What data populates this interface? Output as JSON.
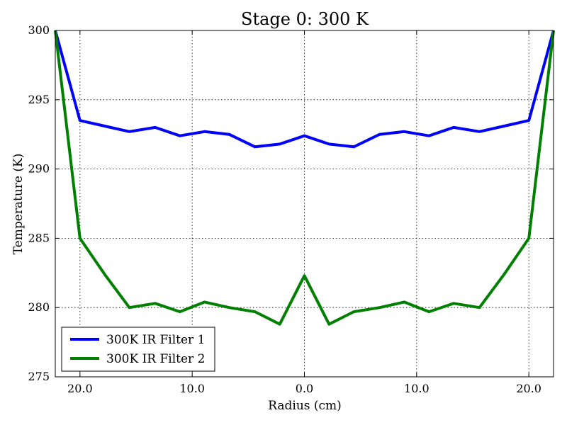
{
  "chart_data": {
    "type": "line",
    "title": "Stage 0: 300 K",
    "xlabel": "Radius (cm)",
    "ylabel": "Temperature (K)",
    "xlim": [
      -22.2,
      22.2
    ],
    "ylim": [
      275,
      300
    ],
    "grid": true,
    "legend": "lower-left",
    "x_ticks": [
      {
        "value": -20,
        "label": "20.0"
      },
      {
        "value": -10,
        "label": "10.0"
      },
      {
        "value": 0,
        "label": "0.0"
      },
      {
        "value": 10,
        "label": "10.0"
      },
      {
        "value": 20,
        "label": "20.0"
      }
    ],
    "y_ticks": [
      {
        "value": 275,
        "label": "275"
      },
      {
        "value": 280,
        "label": "280"
      },
      {
        "value": 285,
        "label": "285"
      },
      {
        "value": 290,
        "label": "290"
      },
      {
        "value": 295,
        "label": "295"
      },
      {
        "value": 300,
        "label": "300"
      }
    ],
    "x": [
      -22.2,
      -20.0,
      -17.8,
      -15.6,
      -13.3,
      -11.1,
      -8.9,
      -6.7,
      -4.4,
      -2.2,
      0.0,
      2.2,
      4.4,
      6.7,
      8.9,
      11.1,
      13.3,
      15.6,
      17.8,
      20.0,
      22.2
    ],
    "series": [
      {
        "name": "300K IR Filter 1",
        "color": "#0000ff",
        "values": [
          300.0,
          293.5,
          293.1,
          292.7,
          293.0,
          292.4,
          292.7,
          292.5,
          291.6,
          291.8,
          292.4,
          291.8,
          291.6,
          292.5,
          292.7,
          292.4,
          293.0,
          292.7,
          293.1,
          293.5,
          300.0
        ]
      },
      {
        "name": "300K IR Filter 2",
        "color": "#008000",
        "values": [
          300.0,
          285.0,
          282.4,
          280.0,
          280.3,
          279.7,
          280.4,
          280.0,
          279.7,
          278.8,
          282.3,
          278.8,
          279.7,
          280.0,
          280.4,
          279.7,
          280.3,
          280.0,
          282.4,
          285.0,
          300.0
        ]
      }
    ]
  }
}
